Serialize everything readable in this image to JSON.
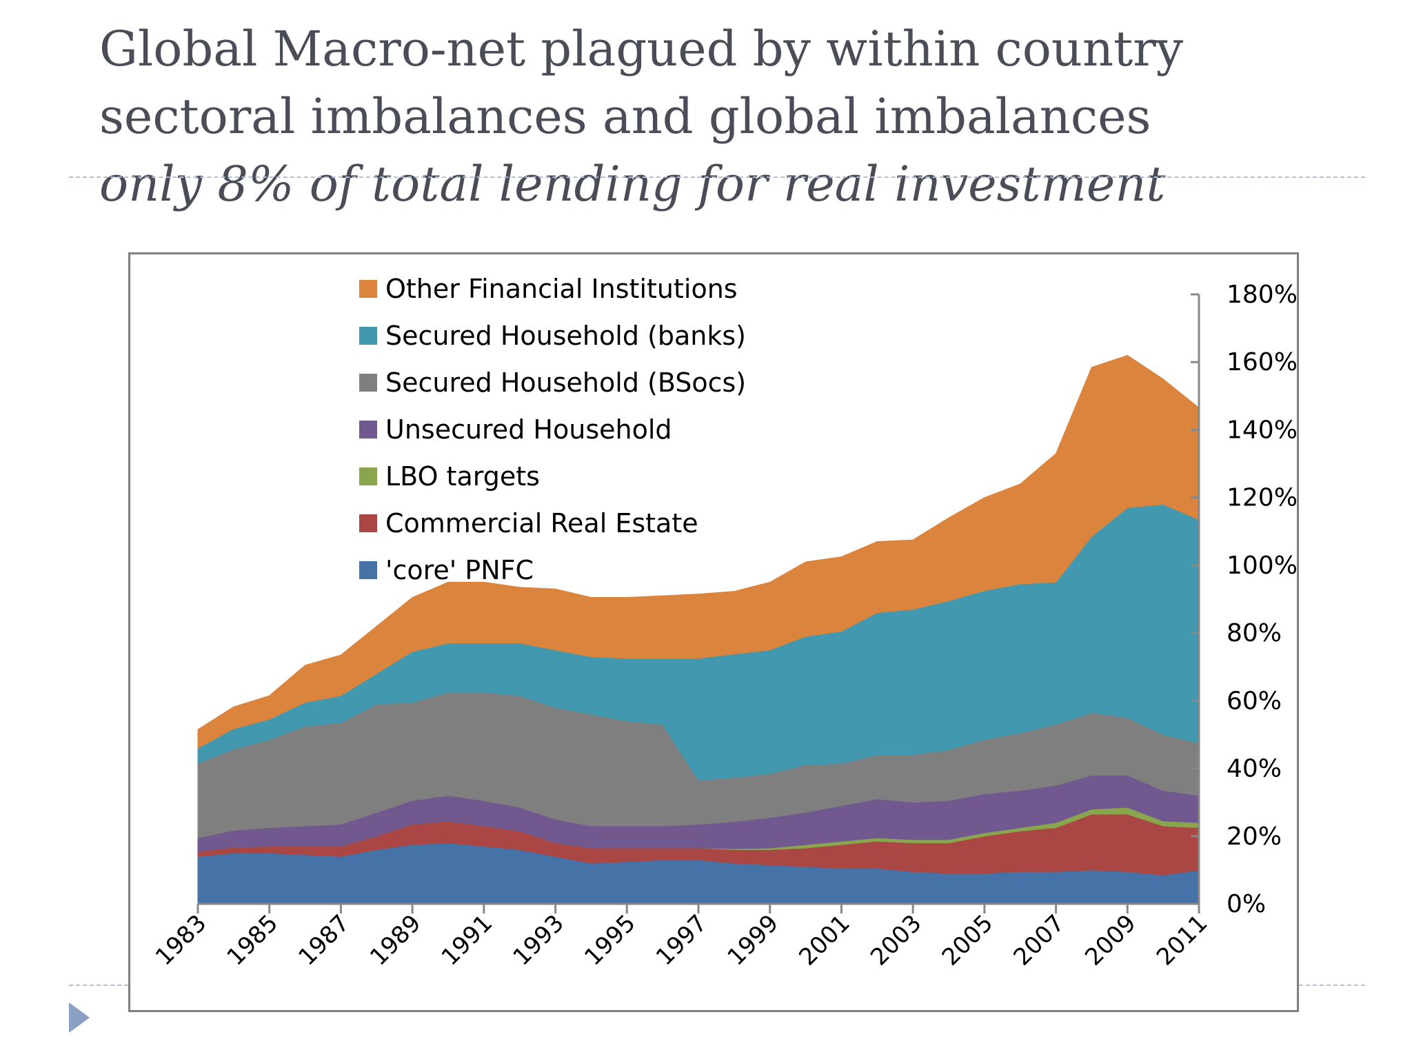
{
  "slide": {
    "title_line1": "Global Macro-net plagued by within country",
    "title_line2": "sectoral imbalances and global imbalances",
    "subtitle": "only 8% of total lending for real investment"
  },
  "chart_data": {
    "type": "area",
    "stacked": true,
    "x": [
      1983,
      1984,
      1985,
      1986,
      1987,
      1988,
      1989,
      1990,
      1991,
      1992,
      1993,
      1994,
      1995,
      1996,
      1997,
      1998,
      1999,
      2000,
      2001,
      2002,
      2003,
      2004,
      2005,
      2006,
      2007,
      2008,
      2009,
      2010,
      2011
    ],
    "x_tick_labels": [
      "1983",
      "1985",
      "1987",
      "1989",
      "1991",
      "1993",
      "1995",
      "1997",
      "1999",
      "2001",
      "2003",
      "2005",
      "2007",
      "2009",
      "2011"
    ],
    "y_tick_labels": [
      "0%",
      "20%",
      "40%",
      "60%",
      "80%",
      "100%",
      "120%",
      "140%",
      "160%",
      "180%"
    ],
    "ylim": [
      0,
      180
    ],
    "y_unit": "%",
    "y_axis_side": "right",
    "grid": false,
    "legend_position": "top-left",
    "series": [
      {
        "name": "'core' PNFC",
        "color": "#4572a7",
        "values": [
          14,
          15,
          15,
          14.5,
          14,
          16,
          17.5,
          18,
          17,
          16,
          14,
          12,
          12.5,
          13,
          13,
          12,
          11.5,
          11,
          10.5,
          10.5,
          9.5,
          9,
          9,
          9.5,
          9.5,
          10,
          9.5,
          8.5,
          10
        ]
      },
      {
        "name": "Commercial Real Estate",
        "color": "#aa4643",
        "values": [
          1.5,
          1.7,
          2,
          2.5,
          3,
          4,
          6,
          6.5,
          6,
          5.5,
          4,
          4.5,
          4,
          3.5,
          3.5,
          4,
          4.5,
          5.5,
          7,
          8,
          8.5,
          9,
          11,
          12,
          13,
          16.5,
          17,
          14.5,
          12.5
        ]
      },
      {
        "name": "LBO targets",
        "color": "#89a54e",
        "values": [
          0,
          0,
          0,
          0,
          0,
          0,
          0,
          0,
          0,
          0,
          0,
          0,
          0,
          0,
          0,
          0.3,
          0.5,
          1,
          1,
          1,
          1,
          1,
          1,
          1,
          1.5,
          1.5,
          2,
          1.5,
          1.5
        ]
      },
      {
        "name": "Unsecured Household",
        "color": "#71588f",
        "values": [
          4,
          5,
          5.5,
          6,
          6.5,
          7,
          7,
          7.5,
          7.5,
          7,
          7,
          6.5,
          6.5,
          6.5,
          7,
          8,
          9,
          9.5,
          10.5,
          11.5,
          11,
          11.5,
          11.5,
          11,
          11,
          10,
          9.5,
          9,
          8
        ]
      },
      {
        "name": "Secured Household (BSocs)",
        "color": "#7f7f7f",
        "values": [
          22,
          24,
          26,
          29.5,
          30,
          32,
          29,
          30.5,
          32,
          33,
          33,
          33,
          31,
          30,
          13,
          13,
          13,
          14,
          12.5,
          13,
          14,
          15,
          16,
          17,
          18,
          18.5,
          17,
          16.5,
          15.5
        ]
      },
      {
        "name": "Secured Household (banks)",
        "color": "#4198af",
        "values": [
          4.5,
          6,
          6,
          7,
          8,
          9,
          15,
          14.5,
          14.5,
          15.5,
          17,
          17,
          18.5,
          19.5,
          36,
          36.5,
          36.5,
          38,
          39,
          42,
          43,
          44,
          44,
          44,
          42,
          52,
          62,
          68,
          66
        ]
      },
      {
        "name": "Other Financial Institutions",
        "color": "#db843d",
        "values": [
          5.5,
          6.5,
          7,
          11,
          12,
          14,
          16,
          18,
          18,
          16.5,
          18,
          17.5,
          18,
          18.5,
          19,
          18.5,
          20,
          22,
          22,
          21,
          20.5,
          24.5,
          27.5,
          29.5,
          38,
          50,
          45,
          37,
          33
        ]
      }
    ]
  }
}
